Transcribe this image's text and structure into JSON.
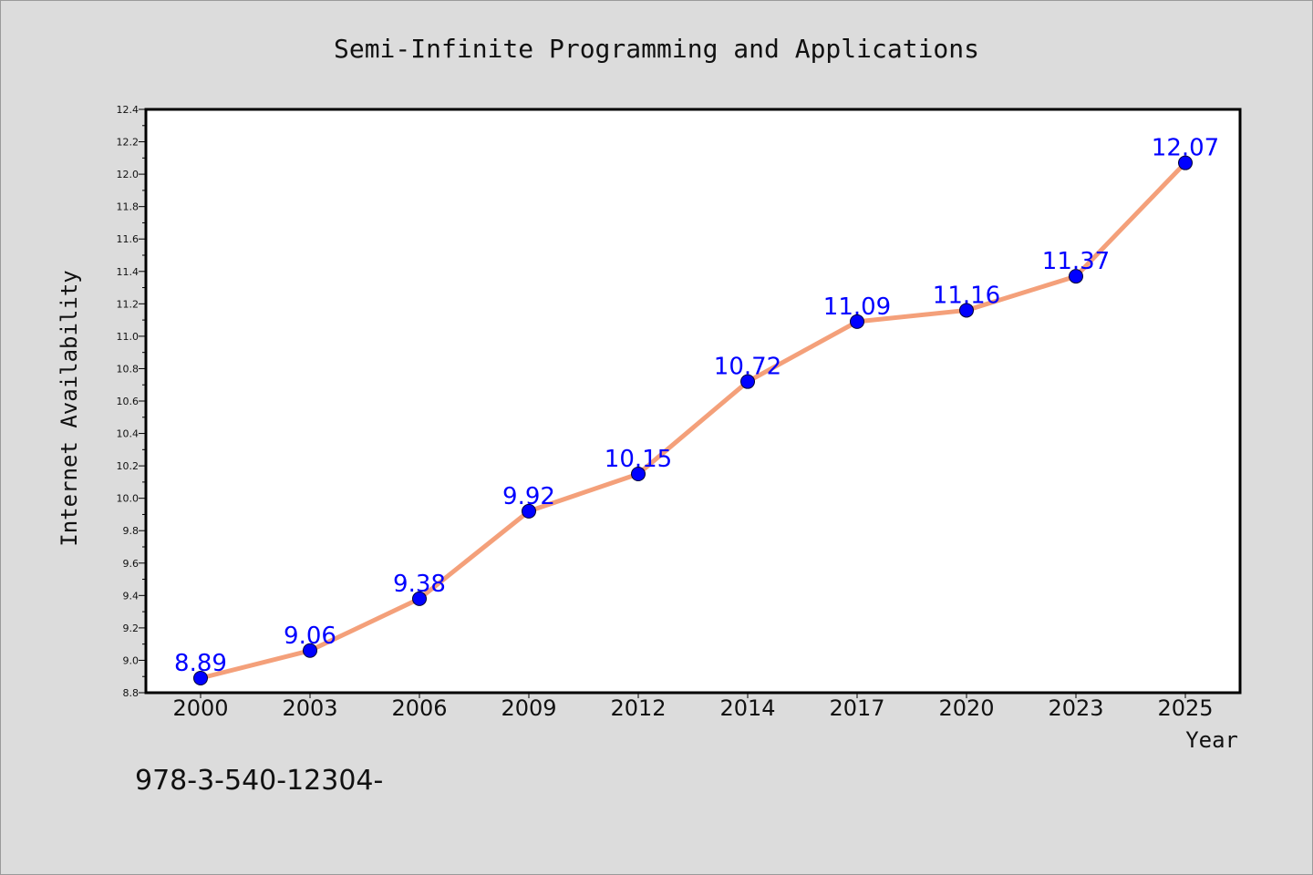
{
  "chart_data": {
    "type": "line",
    "title": "Semi-Infinite Programming and Applications",
    "xlabel": "Year",
    "ylabel": "Internet Availability",
    "categories": [
      "2000",
      "2003",
      "2006",
      "2009",
      "2012",
      "2014",
      "2017",
      "2020",
      "2023",
      "2025"
    ],
    "series": [
      {
        "values": [
          8.89,
          9.06,
          9.38,
          9.92,
          10.15,
          10.72,
          11.09,
          11.16,
          11.37,
          12.07
        ],
        "line_color": "#f4a07a",
        "marker_color": "#0000ff"
      }
    ],
    "data_labels": [
      "8.89",
      "9.06",
      "9.38",
      "9.92",
      "10.15",
      "10.72",
      "11.09",
      "11.16",
      "11.37",
      "12.07"
    ],
    "ylim": [
      8.8,
      12.4
    ],
    "yticks": [
      "8.8",
      "9.0",
      "9.2",
      "9.4",
      "9.6",
      "9.8",
      "10.0",
      "10.2",
      "10.4",
      "10.6",
      "10.8",
      "11.0",
      "11.2",
      "11.4",
      "11.6",
      "11.8",
      "12.0",
      "12.2",
      "12.4"
    ],
    "grid": false,
    "legend": "none"
  },
  "footer_text": "978-3-540-12304-"
}
